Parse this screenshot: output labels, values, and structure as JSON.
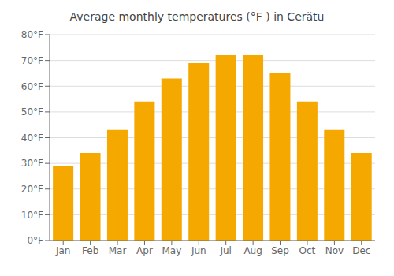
{
  "chart_data": {
    "type": "bar",
    "title": "Average monthly temperatures (°F ) in Cerătu",
    "categories": [
      "Jan",
      "Feb",
      "Mar",
      "Apr",
      "May",
      "Jun",
      "Jul",
      "Aug",
      "Sep",
      "Oct",
      "Nov",
      "Dec"
    ],
    "values": [
      29,
      34,
      43,
      54,
      63,
      69,
      72,
      72,
      65,
      54,
      43,
      34
    ],
    "color": "#F5A800",
    "ylim": [
      0,
      80
    ],
    "yticks": [
      {
        "value": 0,
        "label": "0°F"
      },
      {
        "value": 10,
        "label": "10°F"
      },
      {
        "value": 20,
        "label": "20°F"
      },
      {
        "value": 30,
        "label": "30°F"
      },
      {
        "value": 40,
        "label": "40°F"
      },
      {
        "value": 50,
        "label": "50°F"
      },
      {
        "value": 60,
        "label": "60°F"
      },
      {
        "value": 70,
        "label": "70°F"
      },
      {
        "value": 80,
        "label": "80°F"
      }
    ],
    "grid": true
  }
}
